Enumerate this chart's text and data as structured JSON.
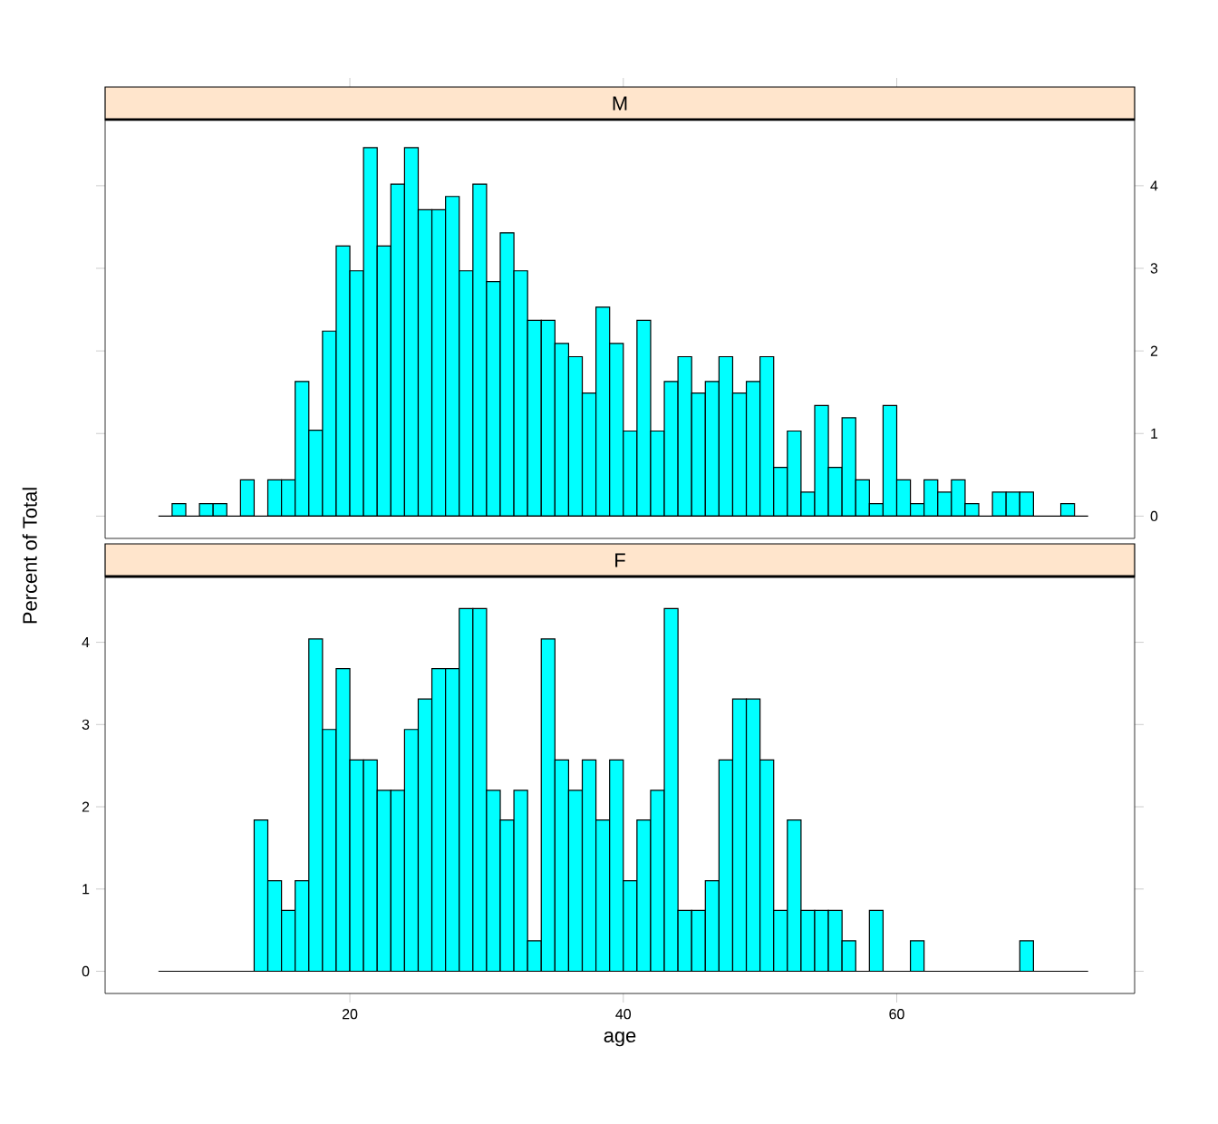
{
  "chart_data": [
    {
      "type": "histogram",
      "title": "M",
      "color": "#00ffff",
      "bins": [
        6,
        7,
        8,
        9,
        10,
        11,
        12,
        13,
        14,
        15,
        16,
        17,
        18,
        19,
        20,
        21,
        22,
        23,
        24,
        25,
        26,
        27,
        28,
        29,
        30,
        31,
        32,
        33,
        34,
        35,
        36,
        37,
        38,
        39,
        40,
        41,
        42,
        43,
        44,
        45,
        46,
        47,
        48,
        49,
        50,
        51,
        52,
        53,
        54,
        55,
        56,
        57,
        58,
        59,
        60,
        61,
        62,
        63,
        64,
        65,
        66,
        67,
        68,
        69,
        70,
        71,
        72,
        73,
        74
      ],
      "values": [
        0,
        0.15,
        0,
        0.15,
        0.15,
        0,
        0.44,
        0,
        0.44,
        0.44,
        1.63,
        1.04,
        2.24,
        3.27,
        2.97,
        4.46,
        3.27,
        4.02,
        4.46,
        3.71,
        3.71,
        3.87,
        2.97,
        4.02,
        2.84,
        3.43,
        2.97,
        2.37,
        2.37,
        2.09,
        1.93,
        1.49,
        2.53,
        2.09,
        1.03,
        2.37,
        1.03,
        1.63,
        1.93,
        1.49,
        1.63,
        1.93,
        1.49,
        1.63,
        1.93,
        0.59,
        1.03,
        0.29,
        1.34,
        0.59,
        1.19,
        0.44,
        0.15,
        1.34,
        0.44,
        0.15,
        0.44,
        0.29,
        0.44,
        0.15,
        0,
        0.29,
        0.29,
        0.29,
        0,
        0,
        0.15,
        0
      ],
      "xlim": [
        2.1,
        77.4
      ],
      "ylim": [
        -0.27,
        4.8
      ],
      "xticks": [
        20,
        40,
        60
      ],
      "yticks": [
        0,
        1,
        2,
        3,
        4
      ],
      "tick_labels": "y"
    },
    {
      "type": "histogram",
      "title": "F",
      "color": "#00ffff",
      "xlabel": "age",
      "ylabel": "Percent of Total",
      "bins": [
        6,
        7,
        8,
        9,
        10,
        11,
        12,
        13,
        14,
        15,
        16,
        17,
        18,
        19,
        20,
        21,
        22,
        23,
        24,
        25,
        26,
        27,
        28,
        29,
        30,
        31,
        32,
        33,
        34,
        35,
        36,
        37,
        38,
        39,
        40,
        41,
        42,
        43,
        44,
        45,
        46,
        47,
        48,
        49,
        50,
        51,
        52,
        53,
        54,
        55,
        56,
        57,
        58,
        59,
        60,
        61,
        62,
        63,
        64,
        65,
        66,
        67,
        68,
        69,
        70,
        71,
        72,
        73,
        74
      ],
      "values": [
        0,
        0,
        0,
        0,
        0,
        0,
        0,
        1.84,
        1.1,
        0.74,
        1.1,
        4.04,
        2.94,
        3.68,
        2.57,
        2.57,
        2.2,
        2.2,
        2.94,
        3.31,
        3.68,
        3.68,
        4.41,
        4.41,
        2.2,
        1.84,
        2.2,
        0.37,
        4.04,
        2.57,
        2.2,
        2.57,
        1.84,
        2.57,
        1.1,
        1.84,
        2.2,
        4.41,
        0.74,
        0.74,
        1.1,
        2.57,
        3.31,
        3.31,
        2.57,
        0.74,
        1.84,
        0.74,
        0.74,
        0.74,
        0.37,
        0,
        0.74,
        0,
        0,
        0.37,
        0,
        0,
        0,
        0,
        0,
        0,
        0,
        0.37,
        0,
        0,
        0,
        0
      ],
      "xlim": [
        2.1,
        77.4
      ],
      "ylim": [
        -0.27,
        4.8
      ],
      "xticks": [
        20,
        40,
        60
      ],
      "yticks": [
        0,
        1,
        2,
        3,
        4
      ]
    }
  ]
}
